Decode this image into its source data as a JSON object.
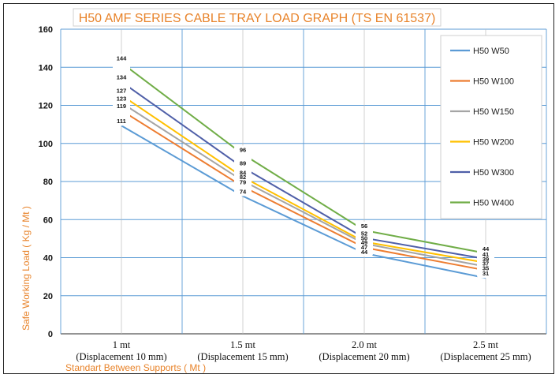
{
  "chart_data": {
    "type": "line",
    "title": "H50 AMF SERIES CABLE TRAY LOAD GRAPH (TS EN 61537)",
    "xlabel": "Standart Between Supports ( Mt )",
    "ylabel": "Safe Working Load ( Kg / Mt )",
    "ylim": [
      0,
      160
    ],
    "yticks": [
      "0",
      "20",
      "40",
      "60",
      "80",
      "100",
      "120",
      "140",
      "160"
    ],
    "categories": [
      {
        "line1": "1 mt",
        "line2": "(Displacement 10 mm)"
      },
      {
        "line1": "1.5 mt",
        "line2": "(Displacement 15 mm)"
      },
      {
        "line1": "2.0 mt",
        "line2": "(Displacement 20 mm)"
      },
      {
        "line1": "2.5 mt",
        "line2": "(Displacement 25 mm)"
      }
    ],
    "grid": true,
    "legend_position": "top-right",
    "series": [
      {
        "name": "H50 W50",
        "color": "#5b9bd5",
        "values": [
          111,
          74,
          44,
          31
        ]
      },
      {
        "name": "H50 W100",
        "color": "#ed7d31",
        "values": [
          119,
          79,
          47,
          35
        ]
      },
      {
        "name": "H50 W150",
        "color": "#a5a5a5",
        "values": [
          123,
          82,
          49,
          37
        ]
      },
      {
        "name": "H50 W200",
        "color": "#ffc000",
        "values": [
          127,
          84,
          50,
          39
        ]
      },
      {
        "name": "H50 W300",
        "color": "#4f5fa8",
        "values": [
          134,
          89,
          52,
          41
        ]
      },
      {
        "name": "H50 W400",
        "color": "#70ad47",
        "values": [
          144,
          96,
          56,
          44
        ]
      }
    ]
  }
}
